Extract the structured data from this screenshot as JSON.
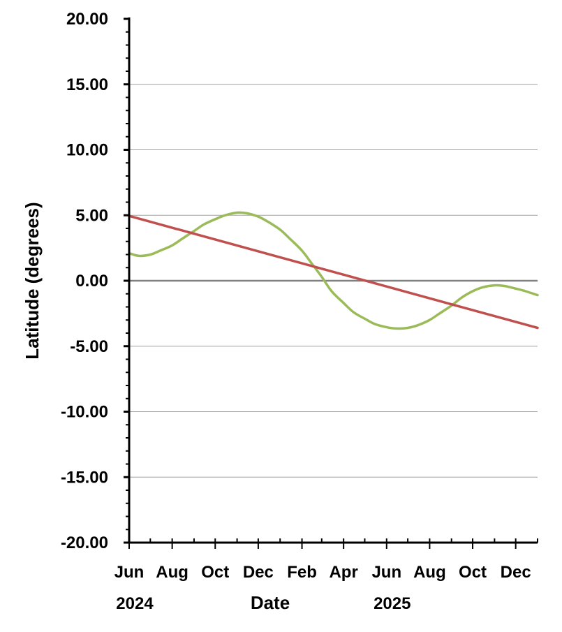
{
  "chart_data": {
    "type": "line",
    "title": "",
    "xlabel": "Date",
    "ylabel": "Latitude (degrees)",
    "ylim": [
      -20,
      20
    ],
    "y_ticks": [
      "20.00",
      "15.00",
      "10.00",
      "5.00",
      "0.00",
      "-5.00",
      "-10.00",
      "-15.00",
      "-20.00"
    ],
    "y_minor_ticks_per_major": 5,
    "x_ticks": [
      "Jun",
      "Aug",
      "Oct",
      "Dec",
      "Feb",
      "Apr",
      "Jun",
      "Aug",
      "Oct",
      "Dec"
    ],
    "x_tick_dates": [
      "2024-06",
      "2024-08",
      "2024-10",
      "2024-12",
      "2025-02",
      "2025-04",
      "2025-06",
      "2025-08",
      "2025-10",
      "2025-12"
    ],
    "x_year_labels": [
      {
        "label": "2024",
        "date": "2024-06"
      },
      {
        "label": "2025",
        "date": "2025-06"
      }
    ],
    "xlim": [
      "2024-06-01",
      "2026-01-01"
    ],
    "grid": "horizontal",
    "legend": "none",
    "series": [
      {
        "color": "#9bbb59",
        "x": [
          "2024-06-01",
          "2024-06-15",
          "2024-07-01",
          "2024-07-15",
          "2024-08-01",
          "2024-08-15",
          "2024-09-01",
          "2024-09-15",
          "2024-10-01",
          "2024-10-15",
          "2024-11-01",
          "2024-11-15",
          "2024-12-01",
          "2024-12-15",
          "2025-01-01",
          "2025-01-15",
          "2025-02-01",
          "2025-02-15",
          "2025-03-01",
          "2025-03-15",
          "2025-04-01",
          "2025-04-15",
          "2025-05-01",
          "2025-05-15",
          "2025-06-01",
          "2025-06-15",
          "2025-07-01",
          "2025-07-15",
          "2025-08-01",
          "2025-08-15",
          "2025-09-01",
          "2025-09-15",
          "2025-10-01",
          "2025-10-15",
          "2025-11-01",
          "2025-11-15",
          "2025-12-01",
          "2025-12-15",
          "2026-01-01"
        ],
        "y": [
          2.1,
          1.9,
          2.0,
          2.3,
          2.7,
          3.2,
          3.8,
          4.3,
          4.7,
          5.0,
          5.2,
          5.15,
          4.9,
          4.5,
          3.9,
          3.2,
          2.3,
          1.3,
          0.3,
          -0.8,
          -1.7,
          -2.4,
          -2.9,
          -3.3,
          -3.55,
          -3.65,
          -3.6,
          -3.4,
          -3.0,
          -2.5,
          -1.9,
          -1.3,
          -0.8,
          -0.5,
          -0.35,
          -0.4,
          -0.6,
          -0.8,
          -1.1
        ]
      },
      {
        "color": "#c0504d",
        "x": [
          "2024-06-01",
          "2026-01-01"
        ],
        "y": [
          4.95,
          -3.6
        ]
      }
    ],
    "reference_line": {
      "y": 0,
      "color": "#808080"
    }
  }
}
